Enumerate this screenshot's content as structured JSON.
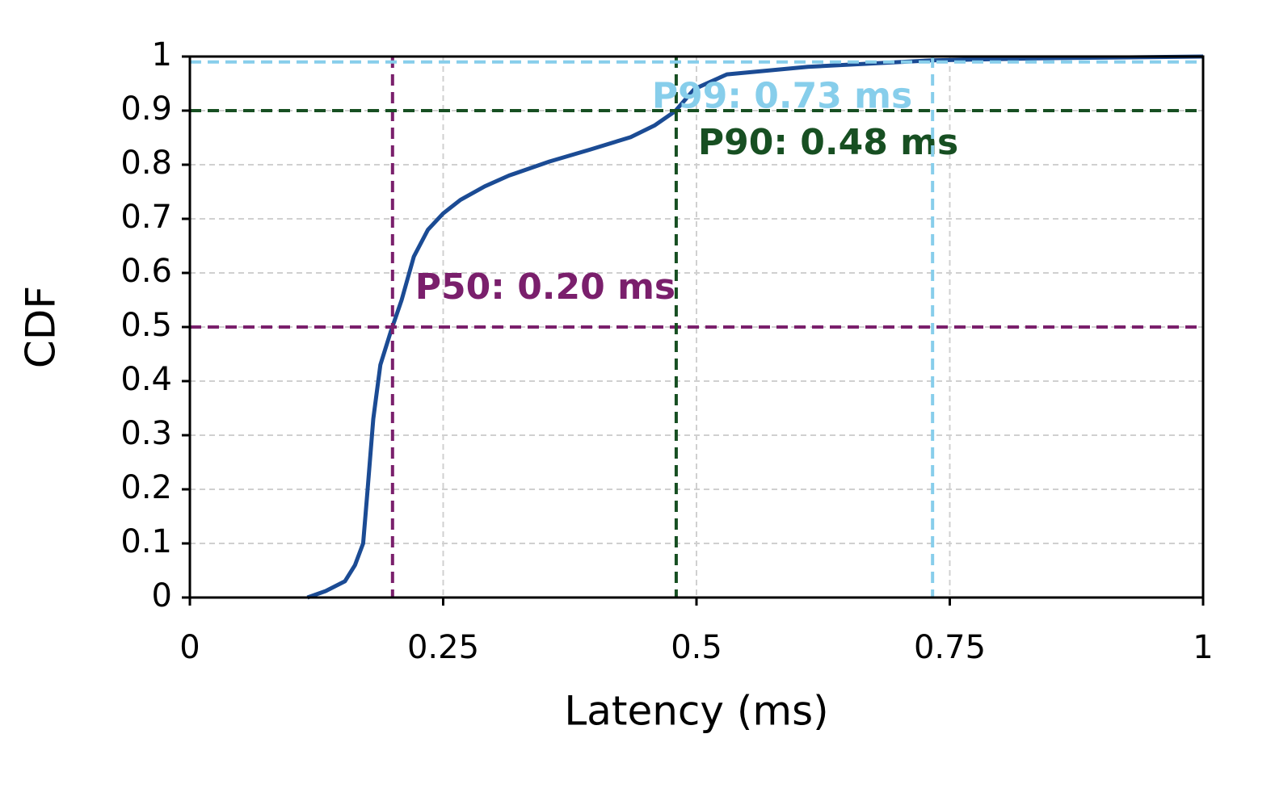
{
  "chart_data": {
    "type": "line",
    "x_label": "Latency (ms)",
    "y_label": "CDF",
    "xlim": [
      0,
      1
    ],
    "ylim": [
      0,
      1
    ],
    "xticks": [
      0,
      0.25,
      0.5,
      0.75,
      1
    ],
    "yticks": [
      0,
      0.1,
      0.2,
      0.3,
      0.4,
      0.5,
      0.6,
      0.7,
      0.8,
      0.9,
      1
    ],
    "grid": true,
    "series": [
      {
        "color": "#1b4b94",
        "x": [
          0.116,
          0.134,
          0.153,
          0.163,
          0.171,
          0.175,
          0.181,
          0.188,
          0.198,
          0.209,
          0.221,
          0.235,
          0.25,
          0.267,
          0.291,
          0.315,
          0.355,
          0.395,
          0.435,
          0.459,
          0.479,
          0.498,
          0.53,
          0.61,
          0.733,
          0.849,
          1.0
        ],
        "values": [
          0,
          0.012,
          0.03,
          0.06,
          0.1,
          0.19,
          0.33,
          0.43,
          0.49,
          0.55,
          0.63,
          0.68,
          0.71,
          0.735,
          0.76,
          0.78,
          0.806,
          0.828,
          0.851,
          0.873,
          0.899,
          0.94,
          0.967,
          0.981,
          0.993,
          0.997,
          1.0
        ]
      }
    ],
    "percentiles": [
      {
        "label": "P50: 0.20 ms",
        "x": 0.2,
        "y": 0.5,
        "color": "#7a1f6c"
      },
      {
        "label": "P90: 0.48 ms",
        "x": 0.48,
        "y": 0.9,
        "color": "#174f22"
      },
      {
        "label": "P99: 0.73 ms",
        "x": 0.733,
        "y": 0.99,
        "color": "#87ceeb"
      }
    ]
  }
}
